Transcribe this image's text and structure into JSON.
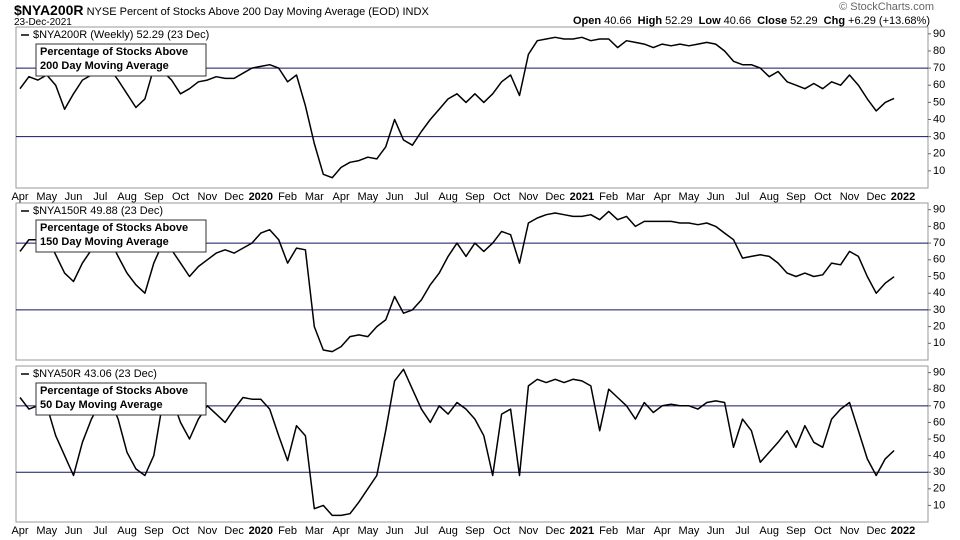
{
  "header": {
    "symbol": "$NYA200R",
    "description": "NYSE Percent of Stocks Above 200 Day Moving Average (EOD)",
    "exchange": "INDX",
    "date": "23-Dec-2021",
    "copyright": "© StockCharts.com",
    "quote": [
      {
        "label": "Open",
        "value": "40.66"
      },
      {
        "label": "High",
        "value": "52.29"
      },
      {
        "label": "Low",
        "value": "40.66"
      },
      {
        "label": "Close",
        "value": "52.29"
      },
      {
        "label": "Chg",
        "value": "+6.29 (+13.68%)"
      }
    ]
  },
  "chart_data": [
    {
      "type": "line",
      "legend_label": "$NYA200R (Weekly) 52.29 (23 Dec)",
      "annotation": [
        "Percentage of Stocks Above",
        "200 Day Moving Average"
      ],
      "color": "#000000",
      "ref_color": "#141460",
      "categories": [
        "Apr",
        null,
        null,
        "May",
        null,
        null,
        "Jun",
        null,
        null,
        "Jul",
        null,
        null,
        "Aug",
        null,
        null,
        "Sep",
        null,
        null,
        "Oct",
        null,
        null,
        "Nov",
        null,
        null,
        "Dec",
        null,
        null,
        "2020",
        null,
        null,
        "Feb",
        null,
        null,
        "Mar",
        null,
        null,
        "Apr",
        null,
        null,
        "May",
        null,
        null,
        "Jun",
        null,
        null,
        "Jul",
        null,
        null,
        "Aug",
        null,
        null,
        "Sep",
        null,
        null,
        "Oct",
        null,
        null,
        "Nov",
        null,
        null,
        "Dec",
        null,
        null,
        "2021",
        null,
        null,
        "Feb",
        null,
        null,
        "Mar",
        null,
        null,
        "Apr",
        null,
        null,
        "May",
        null,
        null,
        "Jun",
        null,
        null,
        "Jul",
        null,
        null,
        "Aug",
        null,
        null,
        "Sep",
        null,
        null,
        "Oct",
        null,
        null,
        "Nov",
        null,
        null,
        "Dec",
        null,
        null,
        "2022"
      ],
      "values": [
        58,
        65,
        63,
        66,
        60,
        46,
        55,
        63,
        66,
        68,
        70,
        63,
        55,
        47,
        52,
        70,
        68,
        63,
        55,
        58,
        62,
        63,
        65,
        64,
        64,
        67,
        70,
        71,
        72,
        70,
        62,
        66,
        48,
        26,
        8,
        6,
        12,
        15,
        16,
        18,
        17,
        24,
        40,
        28,
        25,
        33,
        40,
        46,
        52,
        55,
        50,
        55,
        50,
        55,
        62,
        66,
        54,
        78,
        86,
        87,
        88,
        87,
        87,
        88,
        86,
        87,
        87,
        82,
        86,
        85,
        84,
        82,
        84,
        83,
        84,
        83,
        84,
        85,
        84,
        80,
        74,
        72,
        72,
        70,
        65,
        68,
        62,
        60,
        58,
        61,
        58,
        62,
        60,
        66,
        60,
        52,
        45,
        50,
        52.29,
        null
      ],
      "ylim": [
        0,
        94
      ],
      "yticks": [
        10,
        20,
        30,
        40,
        50,
        60,
        70,
        80,
        90
      ],
      "hlines": [
        30,
        70
      ]
    },
    {
      "type": "line",
      "legend_label": "$NYA150R 49.88 (23 Dec)",
      "annotation": [
        "Percentage of Stocks Above",
        "150 Day Moving Average"
      ],
      "color": "#000000",
      "ref_color": "#141460",
      "values": [
        65,
        72,
        72,
        74,
        63,
        52,
        47,
        58,
        66,
        72,
        73,
        62,
        52,
        45,
        40,
        58,
        70,
        66,
        58,
        50,
        56,
        60,
        64,
        66,
        64,
        67,
        70,
        76,
        78,
        72,
        58,
        67,
        66,
        20,
        6,
        5,
        8,
        14,
        15,
        14,
        20,
        24,
        38,
        28,
        30,
        36,
        45,
        52,
        62,
        70,
        62,
        70,
        65,
        70,
        77,
        75,
        58,
        82,
        85,
        87,
        88,
        87,
        86,
        86,
        87,
        84,
        89,
        84,
        86,
        80,
        83,
        83,
        83,
        83,
        82,
        82,
        81,
        82,
        80,
        76,
        72,
        61,
        62,
        63,
        62,
        58,
        52,
        50,
        52,
        50,
        51,
        58,
        57,
        65,
        62,
        50,
        40,
        46,
        49.88,
        null
      ],
      "ylim": [
        0,
        94
      ],
      "yticks": [
        10,
        20,
        30,
        40,
        50,
        60,
        70,
        80,
        90
      ],
      "hlines": [
        30,
        70
      ]
    },
    {
      "type": "line",
      "legend_label": "$NYA50R 43.06 (23 Dec)",
      "annotation": [
        "Percentage of Stocks Above",
        "50 Day Moving Average"
      ],
      "color": "#000000",
      "ref_color": "#141460",
      "categories": [
        "Apr",
        null,
        null,
        "May",
        null,
        null,
        "Jun",
        null,
        null,
        "Jul",
        null,
        null,
        "Aug",
        null,
        null,
        "Sep",
        null,
        null,
        "Oct",
        null,
        null,
        "Nov",
        null,
        null,
        "Dec",
        null,
        null,
        "2020",
        null,
        null,
        "Feb",
        null,
        null,
        "Mar",
        null,
        null,
        "Apr",
        null,
        null,
        "May",
        null,
        null,
        "Jun",
        null,
        null,
        "Jul",
        null,
        null,
        "Aug",
        null,
        null,
        "Sep",
        null,
        null,
        "Oct",
        null,
        null,
        "Nov",
        null,
        null,
        "Dec",
        null,
        null,
        "2021",
        null,
        null,
        "Feb",
        null,
        null,
        "Mar",
        null,
        null,
        "Apr",
        null,
        null,
        "May",
        null,
        null,
        "Jun",
        null,
        null,
        "Jul",
        null,
        null,
        "Aug",
        null,
        null,
        "Sep",
        null,
        null,
        "Oct",
        null,
        null,
        "Nov",
        null,
        null,
        "Dec",
        null,
        null,
        "2022"
      ],
      "values": [
        75,
        68,
        70,
        70,
        52,
        40,
        28,
        48,
        62,
        72,
        75,
        62,
        42,
        32,
        28,
        40,
        72,
        75,
        60,
        50,
        62,
        70,
        65,
        60,
        68,
        75,
        74,
        74,
        68,
        52,
        37,
        58,
        52,
        8,
        10,
        4,
        4,
        5,
        12,
        20,
        28,
        55,
        85,
        92,
        80,
        68,
        60,
        70,
        65,
        72,
        68,
        62,
        52,
        28,
        65,
        68,
        28,
        82,
        86,
        84,
        86,
        84,
        86,
        85,
        82,
        55,
        80,
        75,
        70,
        62,
        72,
        66,
        70,
        71,
        70,
        70,
        68,
        72,
        73,
        72,
        45,
        62,
        55,
        36,
        42,
        48,
        55,
        45,
        58,
        48,
        45,
        62,
        68,
        72,
        55,
        38,
        28,
        38,
        43.06,
        null
      ],
      "ylim": [
        0,
        94
      ],
      "yticks": [
        10,
        20,
        30,
        40,
        50,
        60,
        70,
        80,
        90
      ],
      "hlines": [
        30,
        70
      ]
    }
  ]
}
